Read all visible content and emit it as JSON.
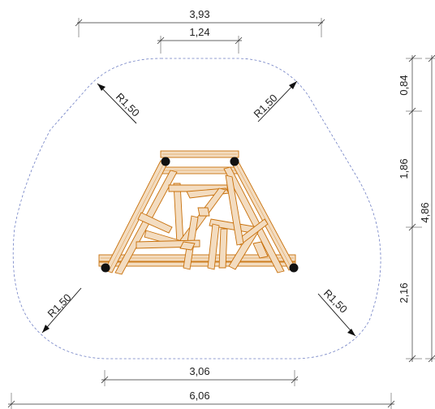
{
  "dimensions": {
    "top_overall": "3,93",
    "top_inner": "1,24",
    "bottom_inner": "3,06",
    "bottom_overall": "6,06",
    "right_seg_top": "0,84",
    "right_seg_mid": "1,86",
    "right_seg_bottom": "2,16",
    "right_overall": "4,86"
  },
  "radii": {
    "top_left": "R1,50",
    "top_right": "R1,50",
    "bottom_left": "R1,50",
    "bottom_right": "R1,50"
  },
  "colors": {
    "zone_outline": "#6f7fc4",
    "timber_fill": "#f3dcc0",
    "timber_stroke": "#c8700a",
    "post": "#111111"
  }
}
